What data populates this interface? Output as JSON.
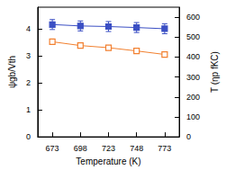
{
  "chart_data": {
    "type": "line",
    "x_label": "Temperature (K)",
    "y_label": "ψgb/Vth",
    "y2_label": "T (ηp fKC)",
    "x": [
      673,
      698,
      723,
      748,
      773
    ],
    "xlim": [
      660,
      786
    ],
    "xticks": [
      673,
      698,
      723,
      748,
      773
    ],
    "ylim": [
      0,
      4.8
    ],
    "yticks": [
      0,
      1,
      2,
      3,
      4
    ],
    "y2lim": [
      0,
      650
    ],
    "y2ticks": [
      0,
      100,
      200,
      300,
      400,
      500,
      600
    ],
    "grid": false,
    "series": [
      {
        "name": "ψgb/Vth",
        "color": "#f27f2e",
        "marker": "square-open",
        "line_style": "solid",
        "values": [
          3.52,
          3.38,
          3.3,
          3.18,
          3.05
        ]
      },
      {
        "name": "T (ηp fKC)",
        "color": "#3b4fc4",
        "marker": "square",
        "line_style": "solid",
        "axis": "y2",
        "values": [
          563,
          556,
          553,
          548,
          542
        ],
        "errors": [
          25,
          25,
          25,
          25,
          25
        ]
      }
    ]
  }
}
